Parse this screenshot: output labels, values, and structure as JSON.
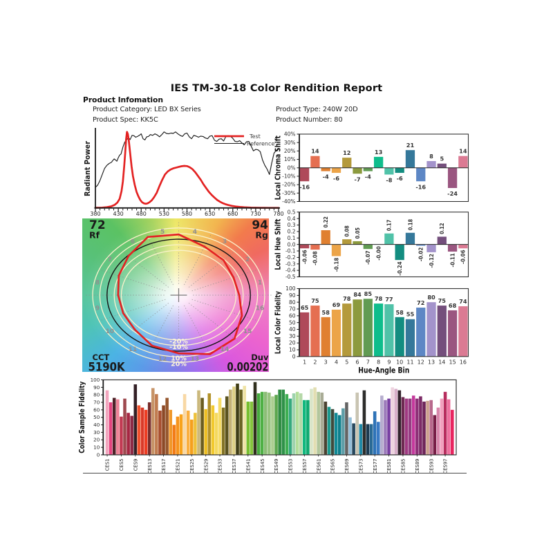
{
  "title": "IES TM-30-18 Color Rendition Report",
  "product_info": {
    "heading": "Product Infomation",
    "category": "Product Category: LED BX Series",
    "spec": "Product Spec: KK5C",
    "type": "Product Type: 240W 20D",
    "number": "Product Number: 80"
  },
  "colors": {
    "test_red": "#E32222",
    "reference_black": "#1b1b1b",
    "frame": "#333333",
    "text": "#1a1a1a",
    "bar_label": "#3a3a3a",
    "circle_cream": "#FBF3CC",
    "hue_bins": [
      "#AF4A5A",
      "#E56F51",
      "#E08030",
      "#ECA448",
      "#B49A3C",
      "#8C9A3E",
      "#619B53",
      "#0FBD8C",
      "#50C2A8",
      "#138D80",
      "#35789A",
      "#5D87C5",
      "#A393CB",
      "#744F7C",
      "#9A5680",
      "#DB7A93"
    ]
  },
  "chart_data": [
    {
      "id": "spd",
      "type": "line",
      "title": "Spectral Power Distribution",
      "xlabel": "",
      "ylabel": "Radiant Power",
      "xlim": [
        380,
        780
      ],
      "ylim": [
        0,
        1.0
      ],
      "x_major_ticks": [
        380,
        430,
        480,
        530,
        580,
        630,
        680,
        730,
        780
      ],
      "x_minor_step": 10,
      "grid": false,
      "legend_position": "upper right",
      "series": [
        {
          "name": "Test",
          "color": "#E32222",
          "points": [
            [
              380,
              0.003
            ],
            [
              395,
              0.005
            ],
            [
              405,
              0.01
            ],
            [
              415,
              0.022
            ],
            [
              422,
              0.04
            ],
            [
              428,
              0.07
            ],
            [
              433,
              0.12
            ],
            [
              437,
              0.22
            ],
            [
              440,
              0.35
            ],
            [
              443,
              0.55
            ],
            [
              445,
              0.72
            ],
            [
              447,
              0.9
            ],
            [
              449,
              1.0
            ],
            [
              451,
              0.97
            ],
            [
              453,
              0.88
            ],
            [
              456,
              0.72
            ],
            [
              459,
              0.55
            ],
            [
              462,
              0.42
            ],
            [
              466,
              0.3
            ],
            [
              470,
              0.21
            ],
            [
              474,
              0.15
            ],
            [
              478,
              0.105
            ],
            [
              482,
              0.075
            ],
            [
              486,
              0.06
            ],
            [
              490,
              0.055
            ],
            [
              494,
              0.06
            ],
            [
              498,
              0.075
            ],
            [
              503,
              0.1
            ],
            [
              508,
              0.14
            ],
            [
              514,
              0.2
            ],
            [
              520,
              0.29
            ],
            [
              526,
              0.37
            ],
            [
              532,
              0.44
            ],
            [
              538,
              0.48
            ],
            [
              544,
              0.505
            ],
            [
              550,
              0.52
            ],
            [
              556,
              0.53
            ],
            [
              562,
              0.54
            ],
            [
              568,
              0.548
            ],
            [
              574,
              0.553
            ],
            [
              580,
              0.55
            ],
            [
              586,
              0.535
            ],
            [
              592,
              0.51
            ],
            [
              598,
              0.47
            ],
            [
              604,
              0.42
            ],
            [
              610,
              0.37
            ],
            [
              616,
              0.31
            ],
            [
              622,
              0.26
            ],
            [
              628,
              0.21
            ],
            [
              634,
              0.17
            ],
            [
              640,
              0.135
            ],
            [
              646,
              0.105
            ],
            [
              652,
              0.082
            ],
            [
              658,
              0.063
            ],
            [
              664,
              0.049
            ],
            [
              670,
              0.038
            ],
            [
              678,
              0.027
            ],
            [
              686,
              0.019
            ],
            [
              695,
              0.013
            ],
            [
              705,
              0.008
            ],
            [
              720,
              0.004
            ],
            [
              740,
              0.002
            ],
            [
              760,
              0.001
            ],
            [
              780,
              0.001
            ]
          ]
        },
        {
          "name": "Reference",
          "color": "#1b1b1b",
          "points": [
            [
              380,
              0.27
            ],
            [
              385,
              0.3
            ],
            [
              390,
              0.36
            ],
            [
              395,
              0.44
            ],
            [
              400,
              0.52
            ],
            [
              405,
              0.56
            ],
            [
              410,
              0.585
            ],
            [
              415,
              0.6
            ],
            [
              418,
              0.625
            ],
            [
              421,
              0.645
            ],
            [
              424,
              0.63
            ],
            [
              427,
              0.615
            ],
            [
              430,
              0.66
            ],
            [
              433,
              0.695
            ],
            [
              436,
              0.71
            ],
            [
              440,
              0.8
            ],
            [
              444,
              0.865
            ],
            [
              448,
              0.895
            ],
            [
              452,
              0.925
            ],
            [
              456,
              0.9
            ],
            [
              460,
              0.955
            ],
            [
              464,
              0.95
            ],
            [
              468,
              0.93
            ],
            [
              472,
              0.94
            ],
            [
              476,
              0.955
            ],
            [
              480,
              0.975
            ],
            [
              484,
              0.91
            ],
            [
              488,
              0.895
            ],
            [
              492,
              0.935
            ],
            [
              496,
              0.94
            ],
            [
              500,
              0.965
            ],
            [
              505,
              0.955
            ],
            [
              510,
              0.975
            ],
            [
              515,
              0.96
            ],
            [
              520,
              0.935
            ],
            [
              525,
              0.965
            ],
            [
              530,
              1.0
            ],
            [
              535,
              0.98
            ],
            [
              540,
              0.975
            ],
            [
              545,
              0.985
            ],
            [
              550,
              0.98
            ],
            [
              555,
              1.0
            ],
            [
              560,
              0.975
            ],
            [
              565,
              0.955
            ],
            [
              570,
              0.94
            ],
            [
              575,
              0.975
            ],
            [
              580,
              0.985
            ],
            [
              585,
              0.935
            ],
            [
              590,
              0.91
            ],
            [
              595,
              0.955
            ],
            [
              600,
              0.945
            ],
            [
              605,
              0.93
            ],
            [
              610,
              0.945
            ],
            [
              615,
              0.94
            ],
            [
              620,
              0.92
            ],
            [
              625,
              0.91
            ],
            [
              630,
              0.945
            ],
            [
              635,
              0.95
            ],
            [
              640,
              0.89
            ],
            [
              645,
              0.875
            ],
            [
              650,
              0.905
            ],
            [
              655,
              0.91
            ],
            [
              660,
              0.88
            ],
            [
              665,
              0.94
            ],
            [
              670,
              0.95
            ],
            [
              675,
              0.945
            ],
            [
              680,
              0.915
            ],
            [
              685,
              0.875
            ],
            [
              690,
              0.87
            ],
            [
              695,
              0.885
            ],
            [
              700,
              0.855
            ],
            [
              705,
              0.83
            ],
            [
              710,
              0.87
            ],
            [
              715,
              0.875
            ],
            [
              720,
              0.815
            ],
            [
              725,
              0.75
            ],
            [
              730,
              0.77
            ],
            [
              735,
              0.765
            ],
            [
              740,
              0.74
            ],
            [
              745,
              0.63
            ],
            [
              750,
              0.56
            ],
            [
              755,
              0.51
            ],
            [
              760,
              0.44
            ],
            [
              765,
              0.59
            ],
            [
              770,
              0.72
            ],
            [
              775,
              0.76
            ],
            [
              780,
              0.77
            ]
          ]
        }
      ]
    },
    {
      "id": "local_chroma_shift",
      "type": "bar",
      "title": "",
      "xlabel": "",
      "ylabel": "Local Chroma Shift",
      "categories": [
        1,
        2,
        3,
        4,
        5,
        6,
        7,
        8,
        9,
        10,
        11,
        12,
        13,
        14,
        15,
        16
      ],
      "values": [
        -16,
        14,
        -4,
        -6,
        12,
        -7,
        -4,
        13,
        -8,
        -6,
        21,
        -16,
        8,
        5,
        -24,
        14
      ],
      "value_labels": [
        "-16",
        "14",
        "-4",
        "-6",
        "12",
        "-7",
        "-4",
        "13",
        "-8",
        "-6",
        "21",
        "-16",
        "8",
        "5",
        "-24",
        "14"
      ],
      "ylim": [
        -40,
        40
      ],
      "ytick_step": 10,
      "ytick_suffix": "%",
      "grid": false
    },
    {
      "id": "local_hue_shift",
      "type": "bar",
      "title": "",
      "xlabel": "",
      "ylabel": "Local Hue Shift",
      "categories": [
        1,
        2,
        3,
        4,
        5,
        6,
        7,
        8,
        9,
        10,
        11,
        12,
        13,
        14,
        15,
        16
      ],
      "values": [
        -0.06,
        -0.08,
        0.22,
        -0.18,
        0.08,
        0.05,
        -0.07,
        -0.004,
        0.17,
        -0.24,
        0.18,
        -0.02,
        -0.12,
        0.12,
        -0.11,
        -0.06
      ],
      "value_labels": [
        "-0.06",
        "-0.08",
        "0.22",
        "-0.18",
        "0.08",
        "0.05",
        "-0.07",
        "-0.00",
        "0.17",
        "-0.24",
        "0.18",
        "-0.02",
        "-0.12",
        "0.12",
        "-0.11",
        "-0.06"
      ],
      "ylim": [
        -0.5,
        0.5
      ],
      "ytick_step": 0.1,
      "ytick_suffix": "",
      "grid": false
    },
    {
      "id": "local_color_fidelity",
      "type": "bar",
      "title": "",
      "xlabel": "Hue-Angle Bin",
      "ylabel": "Local Color Fidelity",
      "categories": [
        1,
        2,
        3,
        4,
        5,
        6,
        7,
        8,
        9,
        10,
        11,
        12,
        13,
        14,
        15,
        16
      ],
      "values": [
        65,
        75,
        58,
        69,
        78,
        84,
        85,
        78,
        77,
        58,
        55,
        72,
        80,
        75,
        68,
        74
      ],
      "value_labels": [
        "65",
        "75",
        "58",
        "69",
        "78",
        "84",
        "85",
        "78",
        "77",
        "58",
        "55",
        "72",
        "80",
        "75",
        "68",
        "74"
      ],
      "ylim": [
        0,
        100
      ],
      "ytick_step": 10,
      "ytick_suffix": "",
      "grid": false
    },
    {
      "id": "color_sample_fidelity",
      "type": "bar",
      "title": "",
      "xlabel": "",
      "ylabel": "Color Sample Fidelity",
      "ylim": [
        0,
        100
      ],
      "ytick_step": 10,
      "tick_labels": [
        "CES1",
        "CES5",
        "CES9",
        "CES13",
        "CES17",
        "CES21",
        "CES25",
        "CES29",
        "CES33",
        "CES37",
        "CES41",
        "CES45",
        "CES49",
        "CES53",
        "CES57",
        "CES61",
        "CES65",
        "CES69",
        "CES73",
        "CES77",
        "CES81",
        "CES85",
        "CES89",
        "CES93",
        "CES97"
      ],
      "values": [
        86,
        70,
        76,
        74,
        51,
        75,
        56,
        52,
        94,
        66,
        63,
        60,
        70,
        89,
        81,
        59,
        66,
        76,
        60,
        40,
        51,
        54,
        81,
        59,
        47,
        56,
        86,
        76,
        61,
        82,
        66,
        56,
        76,
        63,
        78,
        87,
        91,
        95,
        87,
        92,
        71,
        71,
        97,
        82,
        84,
        84,
        83,
        78,
        80,
        87,
        87,
        81,
        75,
        82,
        84,
        82,
        73,
        73,
        88,
        90,
        84,
        83,
        71,
        64,
        61,
        56,
        53,
        62,
        70,
        50,
        42,
        83,
        41,
        86,
        41,
        41,
        58,
        44,
        79,
        73,
        75,
        90,
        88,
        86,
        77,
        75,
        75,
        79,
        75,
        78,
        71,
        72,
        73,
        53,
        63,
        75,
        84,
        74,
        60
      ],
      "bar_colors": [
        "#F2A6BE",
        "#E4427E",
        "#4F2229",
        "#EE8297",
        "#C23A53",
        "#9E4A50",
        "#A62742",
        "#8E2A46",
        "#332026",
        "#F0512D",
        "#D93A28",
        "#ED3D23",
        "#782D2B",
        "#C79468",
        "#C17C50",
        "#A84E2E",
        "#8C4927",
        "#96572E",
        "#F0982A",
        "#F37C17",
        "#F6931C",
        "#F8A31B",
        "#F8D8A5",
        "#FAAF3F",
        "#F5A01D",
        "#EEC13A",
        "#CBB87C",
        "#6A5C20",
        "#EDBE23",
        "#B29128",
        "#F2C92E",
        "#F4D95D",
        "#F6DC68",
        "#837326",
        "#5A521F",
        "#C3B075",
        "#DECF85",
        "#3F3C15",
        "#6A6323",
        "#EFE3A5",
        "#77BE30",
        "#85C43C",
        "#302F1D",
        "#45A93C",
        "#4FB045",
        "#8CBD76",
        "#97C37F",
        "#ABCE90",
        "#5CA74E",
        "#2E8C41",
        "#2F9149",
        "#3FAE52",
        "#35A97E",
        "#9ED3AE",
        "#B2DE9A",
        "#B5D8A8",
        "#10B87E",
        "#0FA970",
        "#D9E5C8",
        "#E2DEB2",
        "#B2C69C",
        "#A9AC96",
        "#4A4231",
        "#1B998E",
        "#3E4A3C",
        "#118A96",
        "#0E7F8C",
        "#5E9EA8",
        "#646464",
        "#94BED8",
        "#27485E",
        "#C9C4B2",
        "#2089A6",
        "#2D2D2B",
        "#1C3A50",
        "#2A6A95",
        "#2E73B7",
        "#3A7AC4",
        "#B6ADCE",
        "#9C7BBA",
        "#7840A2",
        "#EED3DF",
        "#D9AFCA",
        "#32222C",
        "#6E2A52",
        "#A03A82",
        "#953C82",
        "#C4399C",
        "#8E3078",
        "#7C2B66",
        "#6E255A",
        "#CBA08E",
        "#B8688C",
        "#781F47",
        "#D886AB",
        "#F2A0BE",
        "#B72D5E",
        "#EE6E9D",
        "#E8255F"
      ],
      "grid": false
    },
    {
      "id": "color_vector_graphic",
      "type": "vector-graphic",
      "rf_value": "72",
      "rf_label": "Rf",
      "rg_value": "94",
      "rg_label": "Rg",
      "cct_label": "CCT",
      "cct_value": "5190K",
      "duv_label": "Duv",
      "duv_value": "0.00202",
      "circle_labels": [
        "-20%",
        "-10%",
        "10%",
        "20%"
      ],
      "circle_factors": [
        0.8,
        0.9,
        1.1,
        1.2
      ],
      "bin_numbers": [
        "1",
        "2",
        "3",
        "4",
        "5",
        "6",
        "7",
        "8",
        "9",
        "10",
        "11",
        "12",
        "13",
        "14",
        "15",
        "16"
      ],
      "test_polygon_angle_deg": [
        0,
        22.5,
        45,
        67.5,
        90,
        112.5,
        135,
        157.5,
        180,
        202.5,
        225,
        247.5,
        270,
        292.5,
        315,
        337.5
      ],
      "test_polygon_radius": [
        0.845,
        0.828,
        0.885,
        0.94,
        1.085,
        1.125,
        0.99,
        0.905,
        0.845,
        0.838,
        0.868,
        0.975,
        1.04,
        1.14,
        1.1,
        0.955
      ]
    }
  ],
  "legend": {
    "test": "Test",
    "reference": "Reference"
  }
}
